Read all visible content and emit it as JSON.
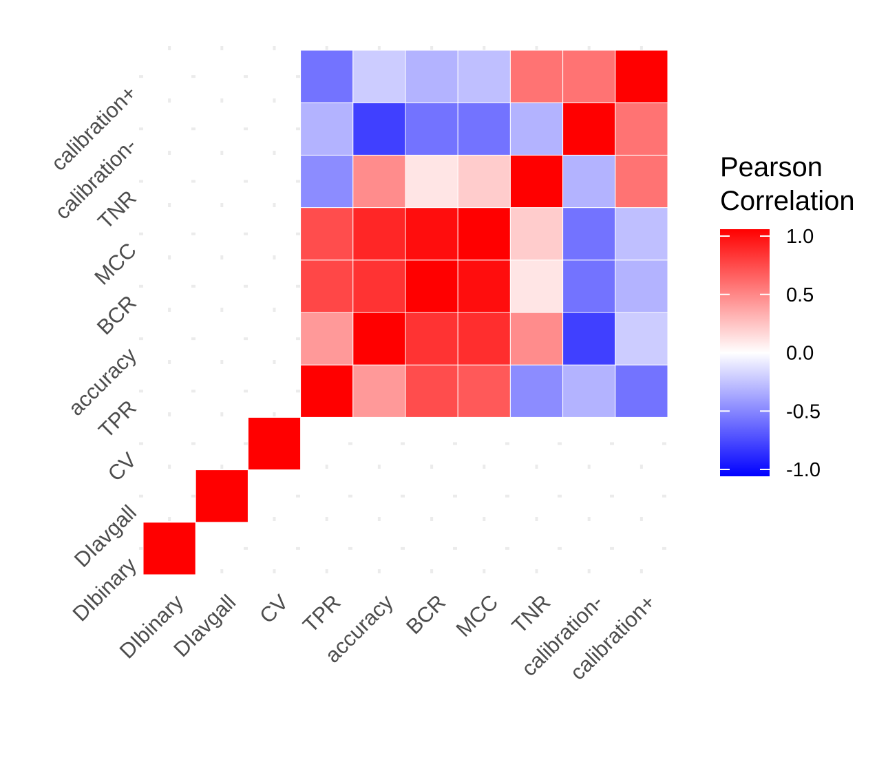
{
  "chart_data": {
    "type": "heatmap",
    "title": "",
    "xlabel": "",
    "ylabel": "",
    "variables": [
      "DIbinary",
      "DIavgall",
      "CV",
      "TPR",
      "accuracy",
      "BCR",
      "MCC",
      "TNR",
      "calibration-",
      "calibration+"
    ],
    "x_categories": [
      "DIbinary",
      "DIavgall",
      "CV",
      "TPR",
      "accuracy",
      "BCR",
      "MCC",
      "TNR",
      "calibration-",
      "calibration+"
    ],
    "y_categories": [
      "DIbinary",
      "DIavgall",
      "CV",
      "TPR",
      "accuracy",
      "BCR",
      "MCC",
      "TNR",
      "calibration-",
      "calibration+"
    ],
    "cells": [
      {
        "x": "DIbinary",
        "y": "DIbinary",
        "value": 1.0
      },
      {
        "x": "DIavgall",
        "y": "DIavgall",
        "value": 1.0
      },
      {
        "x": "CV",
        "y": "CV",
        "value": 1.0
      },
      {
        "x": "TPR",
        "y": "TPR",
        "value": 1.0
      },
      {
        "x": "accuracy",
        "y": "TPR",
        "value": 0.4
      },
      {
        "x": "BCR",
        "y": "TPR",
        "value": 0.7
      },
      {
        "x": "MCC",
        "y": "TPR",
        "value": 0.65
      },
      {
        "x": "TNR",
        "y": "TPR",
        "value": -0.45
      },
      {
        "x": "calibration-",
        "y": "TPR",
        "value": -0.3
      },
      {
        "x": "calibration+",
        "y": "TPR",
        "value": -0.55
      },
      {
        "x": "TPR",
        "y": "accuracy",
        "value": 0.4
      },
      {
        "x": "accuracy",
        "y": "accuracy",
        "value": 1.0
      },
      {
        "x": "BCR",
        "y": "accuracy",
        "value": 0.8
      },
      {
        "x": "MCC",
        "y": "accuracy",
        "value": 0.82
      },
      {
        "x": "TNR",
        "y": "accuracy",
        "value": 0.45
      },
      {
        "x": "calibration-",
        "y": "accuracy",
        "value": -0.75
      },
      {
        "x": "calibration+",
        "y": "accuracy",
        "value": -0.2
      },
      {
        "x": "TPR",
        "y": "BCR",
        "value": 0.72
      },
      {
        "x": "accuracy",
        "y": "BCR",
        "value": 0.8
      },
      {
        "x": "BCR",
        "y": "BCR",
        "value": 1.0
      },
      {
        "x": "MCC",
        "y": "BCR",
        "value": 0.95
      },
      {
        "x": "TNR",
        "y": "BCR",
        "value": 0.1
      },
      {
        "x": "calibration-",
        "y": "BCR",
        "value": -0.55
      },
      {
        "x": "calibration+",
        "y": "BCR",
        "value": -0.3
      },
      {
        "x": "TPR",
        "y": "MCC",
        "value": 0.7
      },
      {
        "x": "accuracy",
        "y": "MCC",
        "value": 0.85
      },
      {
        "x": "BCR",
        "y": "MCC",
        "value": 0.95
      },
      {
        "x": "MCC",
        "y": "MCC",
        "value": 1.0
      },
      {
        "x": "TNR",
        "y": "MCC",
        "value": 0.2
      },
      {
        "x": "calibration-",
        "y": "MCC",
        "value": -0.55
      },
      {
        "x": "calibration+",
        "y": "MCC",
        "value": -0.25
      },
      {
        "x": "TPR",
        "y": "TNR",
        "value": -0.45
      },
      {
        "x": "accuracy",
        "y": "TNR",
        "value": 0.45
      },
      {
        "x": "BCR",
        "y": "TNR",
        "value": 0.1
      },
      {
        "x": "MCC",
        "y": "TNR",
        "value": 0.2
      },
      {
        "x": "TNR",
        "y": "TNR",
        "value": 1.0
      },
      {
        "x": "calibration-",
        "y": "TNR",
        "value": -0.3
      },
      {
        "x": "calibration+",
        "y": "TNR",
        "value": 0.55
      },
      {
        "x": "TPR",
        "y": "calibration-",
        "value": -0.3
      },
      {
        "x": "accuracy",
        "y": "calibration-",
        "value": -0.75
      },
      {
        "x": "BCR",
        "y": "calibration-",
        "value": -0.55
      },
      {
        "x": "MCC",
        "y": "calibration-",
        "value": -0.55
      },
      {
        "x": "TNR",
        "y": "calibration-",
        "value": -0.3
      },
      {
        "x": "calibration-",
        "y": "calibration-",
        "value": 1.0
      },
      {
        "x": "calibration+",
        "y": "calibration-",
        "value": 0.55
      },
      {
        "x": "TPR",
        "y": "calibration+",
        "value": -0.55
      },
      {
        "x": "accuracy",
        "y": "calibration+",
        "value": -0.2
      },
      {
        "x": "BCR",
        "y": "calibration+",
        "value": -0.3
      },
      {
        "x": "MCC",
        "y": "calibration+",
        "value": -0.25
      },
      {
        "x": "TNR",
        "y": "calibration+",
        "value": 0.55
      },
      {
        "x": "calibration-",
        "y": "calibration+",
        "value": 0.55
      },
      {
        "x": "calibration+",
        "y": "calibration+",
        "value": 1.0
      }
    ],
    "color_scale": {
      "low": "#0000ff",
      "mid": "#ffffff",
      "high": "#ff0000",
      "limits": [
        -1,
        1
      ]
    },
    "legend": {
      "title_lines": [
        "Pearson",
        "Correlation"
      ],
      "breaks": [
        1.0,
        0.5,
        0.0,
        -0.5,
        -1.0
      ],
      "labels": [
        "1.0",
        "0.5",
        "0.0",
        "-0.5",
        "-1.0"
      ],
      "position": "right"
    },
    "grid": true
  }
}
